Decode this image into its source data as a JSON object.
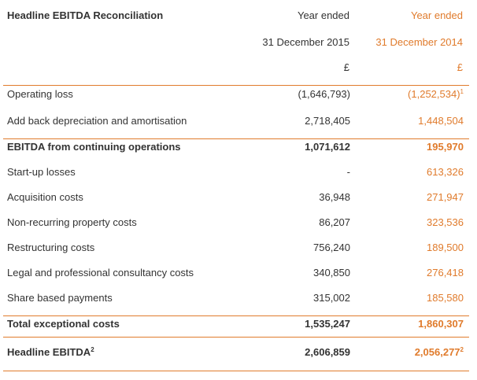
{
  "table": {
    "title": "Headline EBITDA Reconciliation",
    "header": {
      "current": {
        "line1": "Year ended",
        "line2": "31 December 2015",
        "line3": "£"
      },
      "prior": {
        "line1": "Year ended",
        "line2": "31 December 2014",
        "line3": "£"
      }
    },
    "rows": [
      {
        "label": "Operating loss",
        "current": "(1,646,793)",
        "prior": "(1,252,534)",
        "prior_sup": "1"
      },
      {
        "label": "Add back depreciation and amortisation",
        "current": "2,718,405",
        "prior": "1,448,504"
      },
      {
        "label": "EBITDA from continuing operations",
        "current": "1,071,612",
        "prior": "195,970"
      },
      {
        "label": "Start-up losses",
        "current": "-",
        "prior": "613,326"
      },
      {
        "label": "Acquisition costs",
        "current": "36,948",
        "prior": "271,947"
      },
      {
        "label": "Non-recurring property costs",
        "current": "86,207",
        "prior": "323,536"
      },
      {
        "label": "Restructuring costs",
        "current": "756,240",
        "prior": "189,500"
      },
      {
        "label": "Legal and professional consultancy costs",
        "current": "340,850",
        "prior": "276,418"
      },
      {
        "label": "Share based payments",
        "current": "315,002",
        "prior": "185,580"
      },
      {
        "label": "Total exceptional costs",
        "current": "1,535,247",
        "prior": "1,860,307"
      },
      {
        "label": "Headline EBITDA",
        "label_sup": "2",
        "current": "2,606,859",
        "prior": "2,056,277",
        "prior_sup": "2"
      }
    ]
  },
  "colors": {
    "accent": "#e07b2c",
    "text": "#333333"
  }
}
